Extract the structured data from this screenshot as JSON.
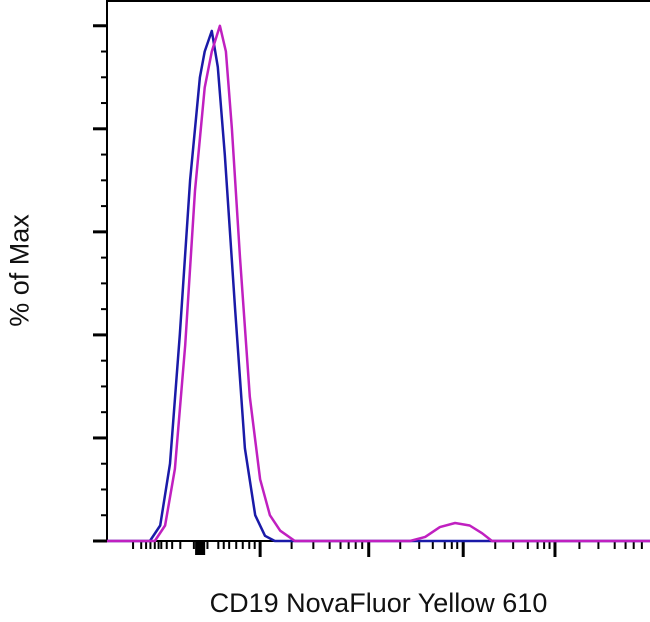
{
  "chart_data": {
    "type": "line",
    "title": "",
    "xlabel": "CD19 NovaFluor Yellow 610",
    "ylabel": "% of Max",
    "xlim": [
      0,
      1000
    ],
    "ylim": [
      0,
      105
    ],
    "y_major_ticks": [
      0,
      20,
      40,
      60,
      80,
      100
    ],
    "x_major_ticks": [
      282,
      482,
      656,
      825
    ],
    "grid": false,
    "legend": "none",
    "series": [
      {
        "color": "#1a1aa8",
        "x": [
          0,
          79,
          98,
          116,
          134,
          153,
          171,
          180,
          193,
          204,
          217,
          236,
          254,
          273,
          291,
          309,
          1000
        ],
        "y": [
          0,
          0,
          3,
          15,
          40,
          70,
          90,
          95,
          99,
          92,
          75,
          45,
          18,
          5,
          1,
          0,
          0
        ]
      },
      {
        "color": "#c020c0",
        "x": [
          0,
          88,
          107,
          125,
          144,
          162,
          180,
          193,
          208,
          219,
          230,
          245,
          263,
          282,
          300,
          319,
          346,
          558,
          586,
          613,
          641,
          668,
          691,
          709,
          1000
        ],
        "y": [
          0,
          0,
          3,
          14,
          38,
          68,
          88,
          95,
          100,
          95,
          80,
          55,
          28,
          12,
          5,
          2,
          0,
          0,
          0.8,
          2.7,
          3.5,
          3,
          1.5,
          0,
          0
        ]
      }
    ]
  }
}
